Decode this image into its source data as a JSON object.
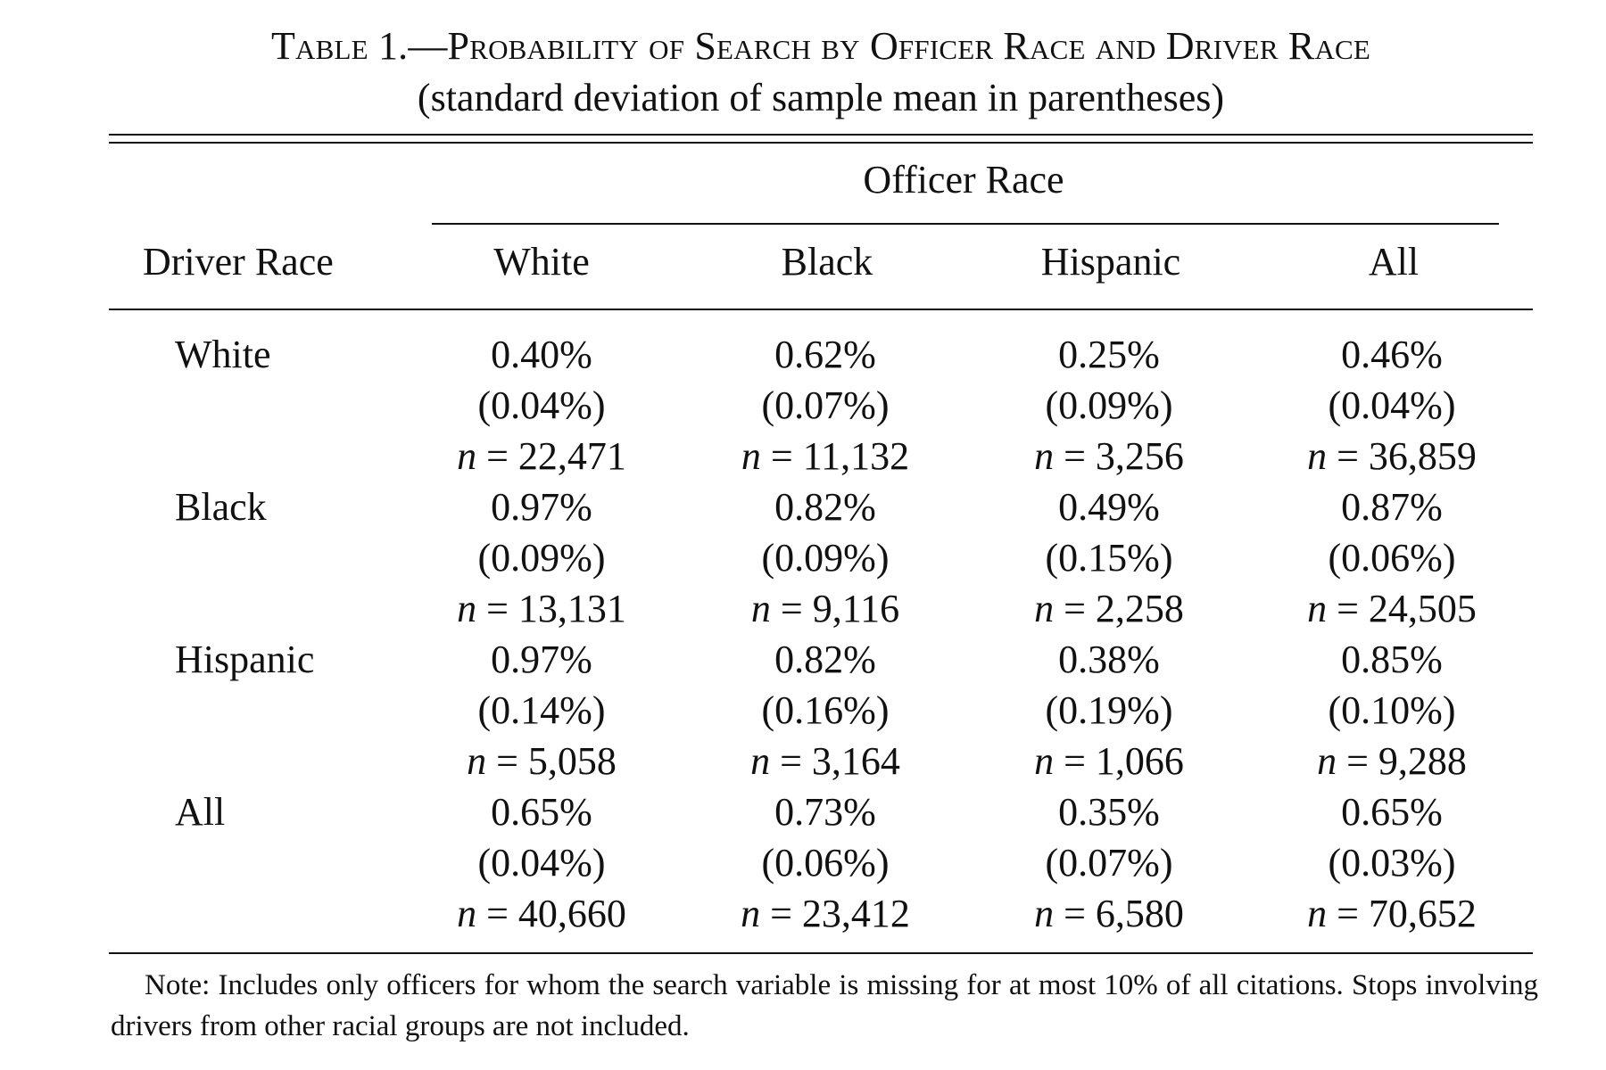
{
  "caption": {
    "line1": "Table 1.—Probability of Search by Officer Race and Driver Race",
    "line2": "(standard deviation of sample mean in parentheses)"
  },
  "header": {
    "spanner": "Officer Race",
    "row_header": "Driver Race",
    "columns": [
      "White",
      "Black",
      "Hispanic",
      "All"
    ]
  },
  "rows": [
    {
      "label": "White",
      "cells": [
        {
          "mean": "0.40%",
          "sd": "(0.04%)",
          "n": "22,471"
        },
        {
          "mean": "0.62%",
          "sd": "(0.07%)",
          "n": "11,132"
        },
        {
          "mean": "0.25%",
          "sd": "(0.09%)",
          "n": "3,256"
        },
        {
          "mean": "0.46%",
          "sd": "(0.04%)",
          "n": "36,859"
        }
      ]
    },
    {
      "label": "Black",
      "cells": [
        {
          "mean": "0.97%",
          "sd": "(0.09%)",
          "n": "13,131"
        },
        {
          "mean": "0.82%",
          "sd": "(0.09%)",
          "n": "9,116"
        },
        {
          "mean": "0.49%",
          "sd": "(0.15%)",
          "n": "2,258"
        },
        {
          "mean": "0.87%",
          "sd": "(0.06%)",
          "n": "24,505"
        }
      ]
    },
    {
      "label": "Hispanic",
      "cells": [
        {
          "mean": "0.97%",
          "sd": "(0.14%)",
          "n": "5,058"
        },
        {
          "mean": "0.82%",
          "sd": "(0.16%)",
          "n": "3,164"
        },
        {
          "mean": "0.38%",
          "sd": "(0.19%)",
          "n": "1,066"
        },
        {
          "mean": "0.85%",
          "sd": "(0.10%)",
          "n": "9,288"
        }
      ]
    },
    {
      "label": "All",
      "cells": [
        {
          "mean": "0.65%",
          "sd": "(0.04%)",
          "n": "40,660"
        },
        {
          "mean": "0.73%",
          "sd": "(0.06%)",
          "n": "23,412"
        },
        {
          "mean": "0.35%",
          "sd": "(0.07%)",
          "n": "6,580"
        },
        {
          "mean": "0.65%",
          "sd": "(0.03%)",
          "n": "70,652"
        }
      ]
    }
  ],
  "n_prefix": "n =",
  "note": "Note: Includes only officers for whom the search variable is missing for at most 10% of all citations. Stops involving drivers from other racial groups are not included."
}
